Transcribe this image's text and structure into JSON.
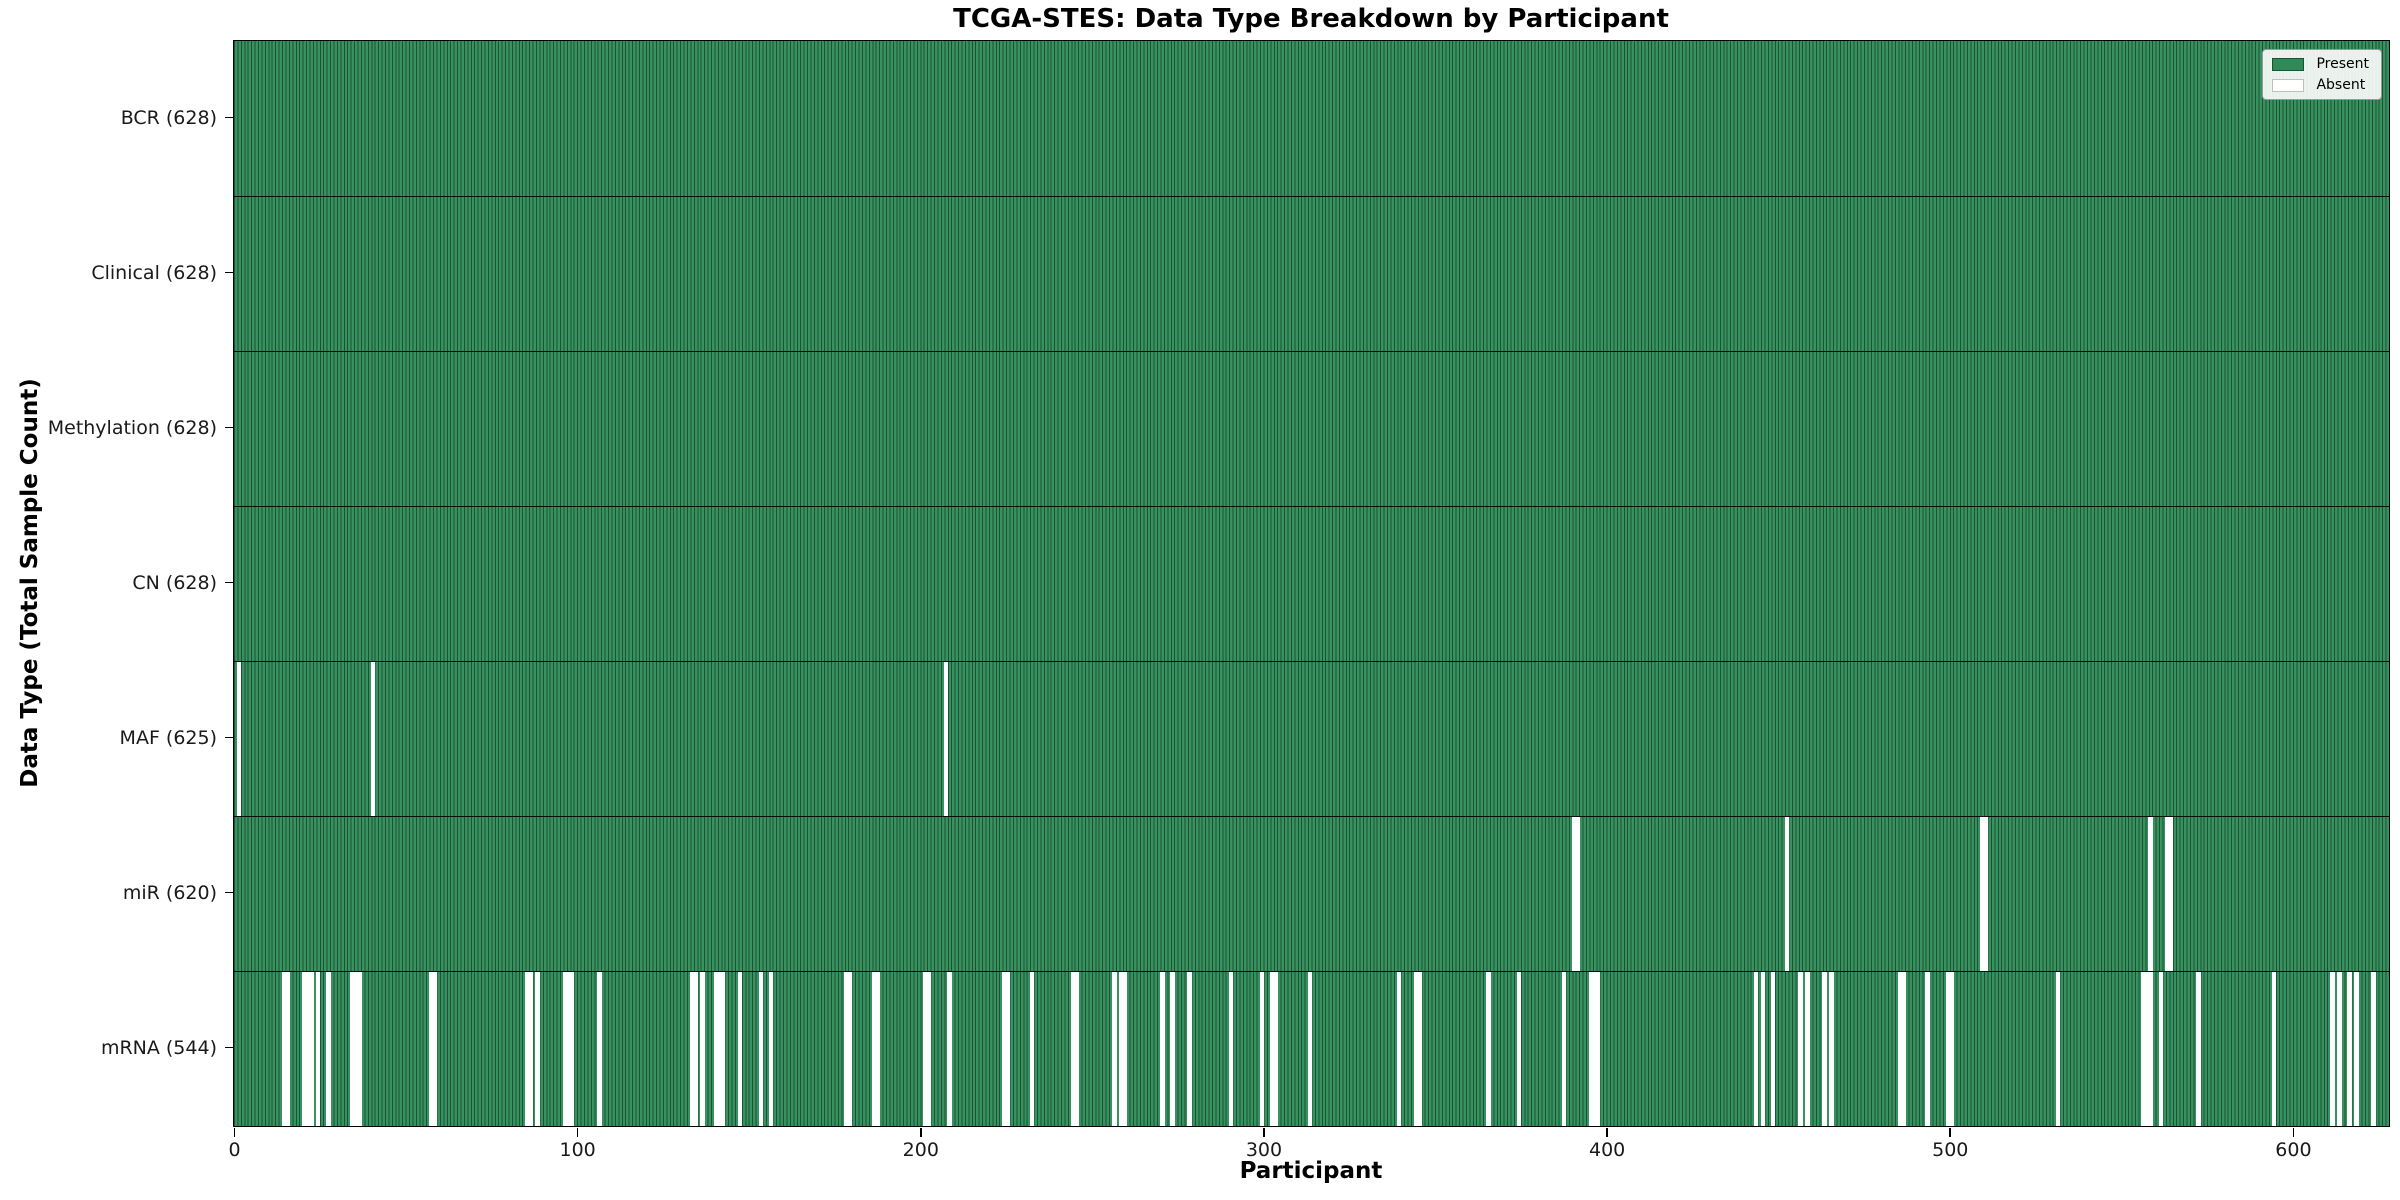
{
  "title": "TCGA-STES: Data Type Breakdown by Participant",
  "axes": {
    "xlabel": "Participant",
    "ylabel": "Data Type (Total Sample Count)"
  },
  "legend": {
    "items": [
      {
        "label": "Present",
        "color": "#2e8b57"
      },
      {
        "label": "Absent",
        "color": "#ffffff"
      }
    ]
  },
  "chart_data": {
    "type": "heatmap",
    "title": "TCGA-STES: Data Type Breakdown by Participant",
    "xlabel": "Participant",
    "ylabel": "Data Type (Total Sample Count)",
    "legend_entries": [
      "Present",
      "Absent"
    ],
    "legend_position": "upper right",
    "n_participants": 628,
    "x_ticks": [
      0,
      100,
      200,
      300,
      400,
      500,
      600
    ],
    "colors": {
      "present_fill": "#38925f",
      "present_edge": "#1b5134",
      "absent": "#ffffff",
      "row_divider": "#0a0a0a",
      "plot_border": "#000000"
    },
    "rows": [
      {
        "label": "BCR",
        "total": 628,
        "tick_label": "BCR (628)",
        "absent_participants": []
      },
      {
        "label": "Clinical",
        "total": 628,
        "tick_label": "Clinical (628)",
        "absent_participants": []
      },
      {
        "label": "Methylation",
        "total": 628,
        "tick_label": "Methylation (628)",
        "absent_participants": []
      },
      {
        "label": "CN",
        "total": 628,
        "tick_label": "CN (628)",
        "absent_participants": []
      },
      {
        "label": "MAF",
        "total": 625,
        "tick_label": "MAF (625)",
        "absent_participants": [
          1,
          40,
          207
        ]
      },
      {
        "label": "miR",
        "total": 620,
        "tick_label": "miR (620)",
        "absent_participants": [
          390,
          391,
          452,
          509,
          510,
          558,
          563,
          564
        ]
      },
      {
        "label": "mRNA",
        "total": 544,
        "tick_label": "mRNA (544)",
        "absent_participants": [
          14,
          15,
          20,
          21,
          22,
          24,
          27,
          34,
          35,
          36,
          57,
          58,
          85,
          86,
          88,
          96,
          97,
          98,
          106,
          133,
          134,
          136,
          140,
          141,
          142,
          147,
          153,
          156,
          178,
          179,
          186,
          187,
          201,
          202,
          208,
          224,
          225,
          232,
          244,
          245,
          256,
          258,
          259,
          270,
          273,
          278,
          290,
          299,
          302,
          303,
          313,
          339,
          344,
          345,
          365,
          374,
          387,
          395,
          396,
          397,
          443,
          445,
          448,
          456,
          458,
          463,
          465,
          485,
          486,
          493,
          499,
          500,
          531,
          556,
          557,
          558,
          561,
          572,
          594,
          611,
          613,
          616,
          618,
          623
        ]
      }
    ]
  }
}
